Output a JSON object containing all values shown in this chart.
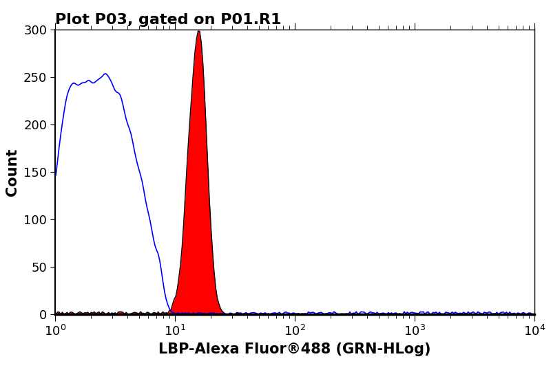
{
  "title": "Plot P03, gated on P01.R1",
  "xlabel": "LBP-Alexa Fluor®488 (GRN-HLog)",
  "ylabel": "Count",
  "xlim_log": [
    0,
    4
  ],
  "ylim": [
    0,
    300
  ],
  "yticks": [
    0,
    50,
    100,
    150,
    200,
    250,
    300
  ],
  "title_fontsize": 16,
  "label_fontsize": 15,
  "tick_fontsize": 13,
  "background_color": "#ffffff",
  "blue_color": "#0000ff",
  "red_color": "#ff0000",
  "black_color": "#000000",
  "blue_peak_log": 0.52,
  "blue_peak_height": 210,
  "red_peak_log": 1.2,
  "red_peak_height": 300
}
